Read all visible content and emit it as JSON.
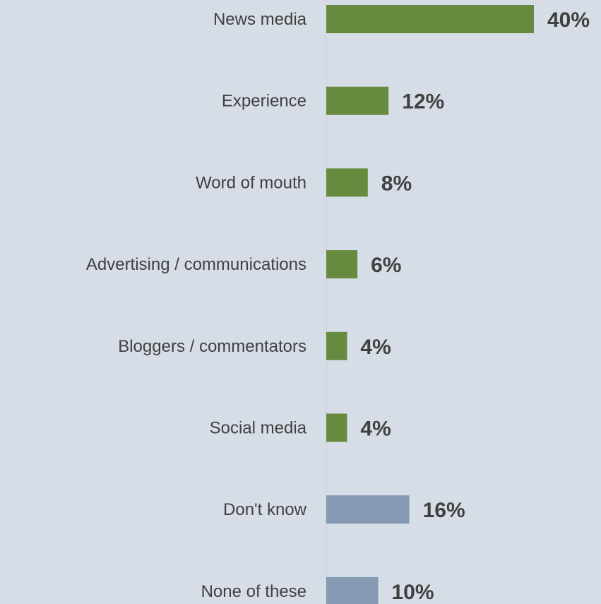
{
  "chart_data": {
    "type": "bar",
    "orientation": "horizontal",
    "categories": [
      "News media",
      "Experience",
      "Word of mouth",
      "Advertising / communications",
      "Bloggers / commentators",
      "Social media",
      "Don't know",
      "None of these"
    ],
    "values": [
      40,
      12,
      8,
      6,
      4,
      4,
      16,
      10
    ],
    "value_labels": [
      "40%",
      "12%",
      "8%",
      "6%",
      "4%",
      "4%",
      "16%",
      "10%"
    ],
    "bar_colors": [
      "#668a3e",
      "#668a3e",
      "#668a3e",
      "#668a3e",
      "#668a3e",
      "#668a3e",
      "#8599b3",
      "#8599b3"
    ],
    "unit": "%",
    "xlim": [
      0,
      40
    ],
    "grid": false,
    "legend": "none"
  },
  "colors": {
    "background": "#d6dde6",
    "text": "#404040",
    "axis_line": "#c8d0da"
  }
}
